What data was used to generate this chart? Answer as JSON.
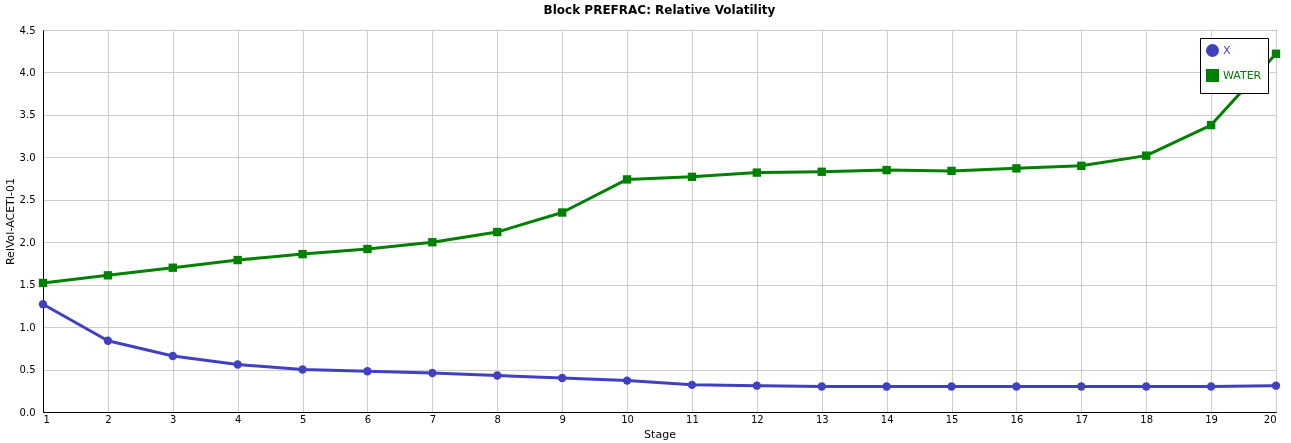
{
  "chart_data": {
    "type": "line",
    "title": "Block PREFRAC: Relative Volatility",
    "xlabel": "Stage",
    "ylabel": "RelVol-ACETI-01",
    "x": [
      1,
      2,
      3,
      4,
      5,
      6,
      7,
      8,
      9,
      10,
      11,
      12,
      13,
      14,
      15,
      16,
      17,
      18,
      19,
      20
    ],
    "series": [
      {
        "name": "X",
        "color": "#4040c0",
        "marker": "circle",
        "values": [
          1.27,
          0.84,
          0.66,
          0.56,
          0.5,
          0.48,
          0.46,
          0.43,
          0.4,
          0.37,
          0.32,
          0.31,
          0.3,
          0.3,
          0.3,
          0.3,
          0.3,
          0.3,
          0.3,
          0.31
        ]
      },
      {
        "name": "WATER",
        "color": "#008000",
        "marker": "square",
        "values": [
          1.52,
          1.61,
          1.7,
          1.79,
          1.86,
          1.92,
          2.0,
          2.12,
          2.35,
          2.74,
          2.77,
          2.82,
          2.83,
          2.85,
          2.84,
          2.87,
          2.9,
          3.02,
          3.38,
          4.22
        ]
      }
    ],
    "xlim": [
      1,
      20
    ],
    "xticks": [
      1,
      2,
      3,
      4,
      5,
      6,
      7,
      8,
      9,
      10,
      11,
      12,
      13,
      14,
      15,
      16,
      17,
      18,
      19,
      20
    ],
    "ylim": [
      0,
      4.5
    ],
    "yticks": [
      {
        "value": 0,
        "label": "0.0"
      },
      {
        "value": 0.5,
        "label": "0.5"
      },
      {
        "value": 1,
        "label": "1.0"
      },
      {
        "value": 1.5,
        "label": "1.5"
      },
      {
        "value": 2,
        "label": "2.0"
      },
      {
        "value": 2.5,
        "label": "2.5"
      },
      {
        "value": 3,
        "label": "3.0"
      },
      {
        "value": 3.5,
        "label": "3.5"
      },
      {
        "value": 4,
        "label": "4.0"
      },
      {
        "value": 4.5,
        "label": "4.5"
      }
    ],
    "grid": true,
    "legend": "top right",
    "line_style": "solid"
  }
}
